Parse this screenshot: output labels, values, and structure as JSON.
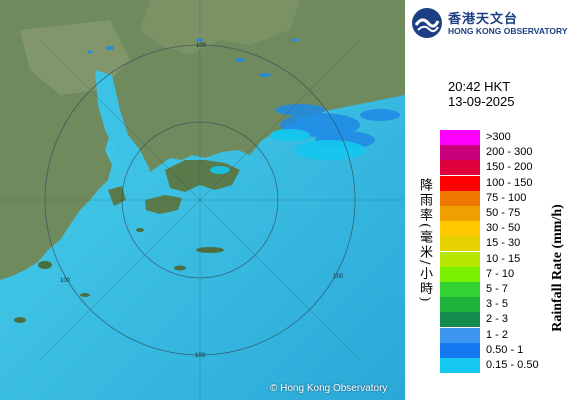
{
  "brand": {
    "name_zh": "香港天文台",
    "name_en": "HONG KONG OBSERVATORY",
    "color": "#1c3f84"
  },
  "timestamp": {
    "time": "20:42 HKT",
    "date": "13-09-2025"
  },
  "legend": {
    "title_zh": "降雨率(毫米/小時)",
    "title_en": "Rainfall Rate (mm/h)",
    "items": [
      {
        "label": ">300",
        "color": "#ff00ff"
      },
      {
        "label": "200 - 300",
        "color": "#c8007c"
      },
      {
        "label": "150 - 200",
        "color": "#e0003c"
      },
      {
        "label": "100 - 150",
        "color": "#ff0000"
      },
      {
        "label": "75 - 100",
        "color": "#f07800"
      },
      {
        "label": "50 - 75",
        "color": "#f0a000"
      },
      {
        "label": "30 - 50",
        "color": "#ffc800"
      },
      {
        "label": "15 - 30",
        "color": "#e6d200"
      },
      {
        "label": "10 - 15",
        "color": "#b4e600"
      },
      {
        "label": "7 - 10",
        "color": "#78f000"
      },
      {
        "label": "5 - 7",
        "color": "#32d232"
      },
      {
        "label": "3 - 5",
        "color": "#1eb43c"
      },
      {
        "label": "2 - 3",
        "color": "#148c50"
      },
      {
        "label": "1 - 2",
        "color": "#3c96f0"
      },
      {
        "label": "0.50 - 1",
        "color": "#1478f0"
      },
      {
        "label": "0.15 - 0.50",
        "color": "#14c8f0"
      }
    ]
  },
  "map": {
    "range_labels": [
      "100",
      "100",
      "100",
      "100"
    ],
    "copyright": "© Hong Kong Observatory"
  }
}
